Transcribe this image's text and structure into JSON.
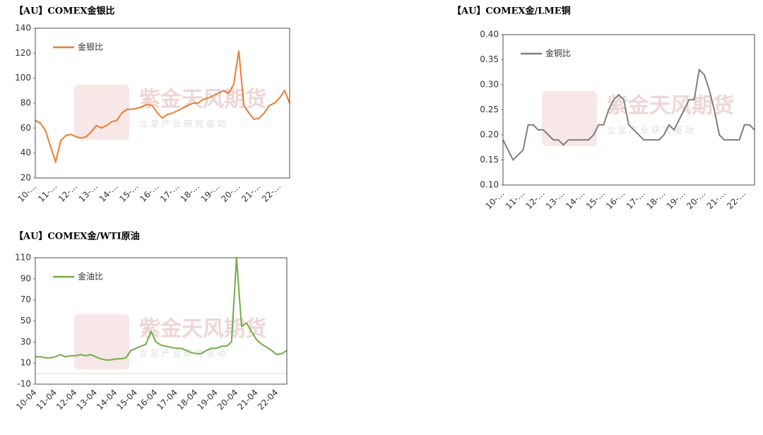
{
  "watermark": {
    "name": "紫金天风期货",
    "slogan": "立 足 产 业 研 究 驱 动"
  },
  "chart_data": [
    {
      "type": "line",
      "title": "【AU】COMEX金银比",
      "categories": [
        "10-…",
        null,
        null,
        null,
        "11-…",
        null,
        null,
        null,
        "12-…",
        null,
        null,
        null,
        "13-…",
        null,
        null,
        null,
        "14-…",
        null,
        null,
        null,
        "15-…",
        null,
        null,
        null,
        "16-…",
        null,
        null,
        null,
        "17-…",
        null,
        null,
        null,
        "18-…",
        null,
        null,
        null,
        "19-…",
        null,
        null,
        null,
        "20-…",
        null,
        null,
        null,
        "21-…",
        null,
        null,
        null,
        "22-…",
        null,
        null
      ],
      "series": [
        {
          "name": "金银比",
          "color": "#ed7d31",
          "values": [
            66,
            64,
            58,
            45,
            33,
            50,
            54,
            55,
            53,
            52,
            53,
            57,
            62,
            60,
            62,
            65,
            66,
            72,
            75,
            75,
            76,
            77,
            79,
            78,
            72,
            68,
            71,
            72,
            74,
            76,
            78,
            80,
            80,
            83,
            84,
            86,
            88,
            90,
            88,
            95,
            122,
            78,
            72,
            67,
            68,
            72,
            78,
            80,
            84,
            90,
            80
          ]
        }
      ],
      "ylim": [
        20,
        140
      ],
      "yticks": [
        20,
        40,
        60,
        80,
        100,
        120,
        140
      ]
    },
    {
      "type": "line",
      "title": "【AU】COMEX金/LME铜",
      "categories": [
        "10-…",
        null,
        null,
        null,
        "11-…",
        null,
        null,
        null,
        "12-…",
        null,
        null,
        null,
        "13-…",
        null,
        null,
        null,
        "14-…",
        null,
        null,
        null,
        "15-…",
        null,
        null,
        null,
        "16-…",
        null,
        null,
        null,
        "17-…",
        null,
        null,
        null,
        "18-…",
        null,
        null,
        null,
        "19-…",
        null,
        null,
        null,
        "20-…",
        null,
        null,
        null,
        "21-…",
        null,
        null,
        null,
        "22-…",
        null,
        null
      ],
      "series": [
        {
          "name": "金铜比",
          "color": "#7f7f7f",
          "values": [
            0.19,
            0.17,
            0.15,
            0.16,
            0.17,
            0.22,
            0.22,
            0.21,
            0.21,
            0.2,
            0.19,
            0.19,
            0.18,
            0.19,
            0.19,
            0.19,
            0.19,
            0.19,
            0.2,
            0.22,
            0.22,
            0.25,
            0.27,
            0.28,
            0.27,
            0.22,
            0.21,
            0.2,
            0.19,
            0.19,
            0.19,
            0.19,
            0.2,
            0.22,
            0.21,
            0.23,
            0.25,
            0.27,
            0.27,
            0.33,
            0.32,
            0.29,
            0.25,
            0.2,
            0.19,
            0.19,
            0.19,
            0.19,
            0.22,
            0.22,
            0.21
          ]
        }
      ],
      "ylim": [
        0.1,
        0.4
      ],
      "yticks": [
        {
          "value": 0.1,
          "label": "0.10"
        },
        0.15,
        {
          "value": 0.2,
          "label": "0.20"
        },
        0.25,
        {
          "value": 0.3,
          "label": "0.30"
        },
        0.35,
        {
          "value": 0.4,
          "label": "0.40"
        }
      ]
    },
    {
      "type": "line",
      "title": "【AU】COMEX金/WTI原油",
      "categories": [
        "10-04",
        null,
        null,
        null,
        "11-04",
        null,
        null,
        null,
        "12-04",
        null,
        null,
        null,
        "13-04",
        null,
        null,
        null,
        "14-04",
        null,
        null,
        null,
        "15-04",
        null,
        null,
        null,
        "16-04",
        null,
        null,
        null,
        "17-04",
        null,
        null,
        null,
        "18-04",
        null,
        null,
        null,
        "19-04",
        null,
        null,
        null,
        "20-04",
        null,
        null,
        null,
        "21-04",
        null,
        null,
        null,
        "22-04",
        null,
        null
      ],
      "series": [
        {
          "name": "金油比",
          "color": "#70ad47",
          "values": [
            16,
            16,
            15,
            15,
            16,
            18,
            16,
            17,
            17,
            18,
            17,
            18,
            16,
            14,
            13,
            13,
            14,
            14,
            15,
            22,
            24,
            26,
            28,
            40,
            30,
            27,
            26,
            25,
            24,
            24,
            22,
            20,
            19,
            19,
            22,
            24,
            24,
            26,
            26,
            30,
            110,
            45,
            48,
            40,
            32,
            28,
            25,
            22,
            18,
            19,
            22
          ]
        }
      ],
      "ylim": [
        -10,
        110
      ],
      "yticks": [
        -10,
        10,
        30,
        50,
        70,
        90,
        110
      ],
      "zero_line": true
    }
  ]
}
